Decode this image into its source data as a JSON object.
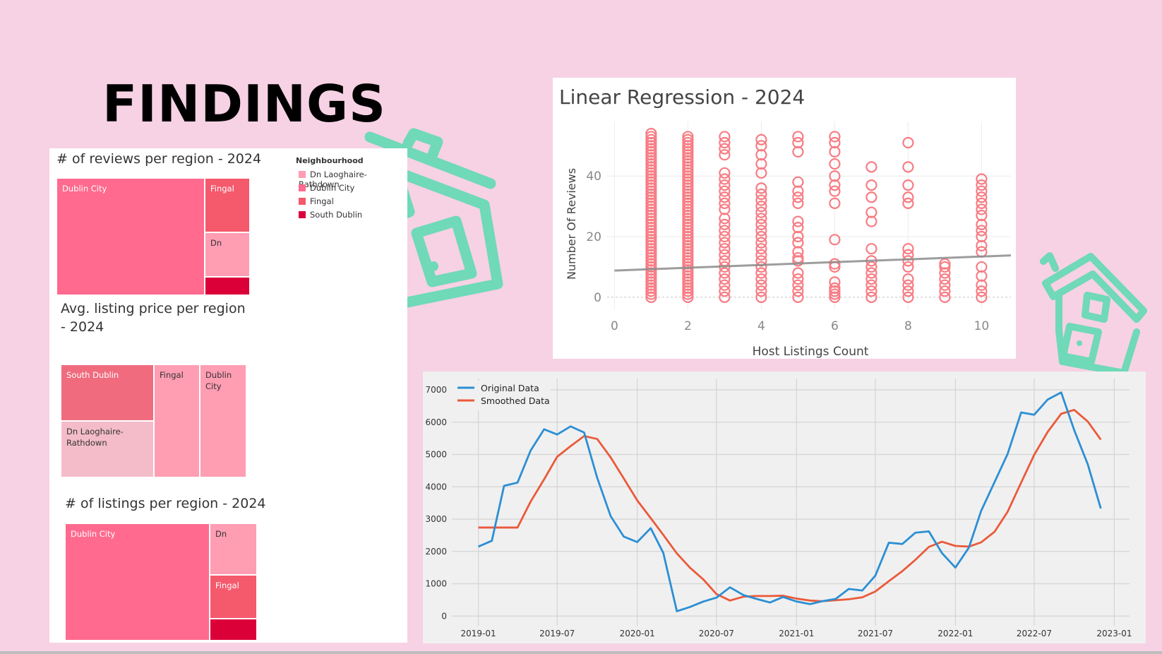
{
  "page": {
    "title": "FINDINGS",
    "colors": {
      "background": "#f7d1e4",
      "house_icon": "#6fd9b8"
    }
  },
  "treemap_reviews": {
    "title": "# of reviews per region - 2024",
    "cells": [
      {
        "label": "Dublin City",
        "color": "#ff6a8e",
        "text_color": "#ffffff"
      },
      {
        "label": "Fingal",
        "color": "#f5596c",
        "text_color": "#ffffff"
      },
      {
        "label": "Dn",
        "color": "#ff9db3",
        "text_color": "#333333"
      },
      {
        "label": "",
        "color": "#dc0039",
        "text_color": "#ffffff"
      }
    ]
  },
  "treemap_price": {
    "title": "Avg. listing price per region - 2024",
    "cells": [
      {
        "label": "South Dublin",
        "color": "#f06b7e",
        "text_color": "#ffffff"
      },
      {
        "label": "Fingal",
        "color": "#ff9db3",
        "text_color": "#333333"
      },
      {
        "label": "Dublin City",
        "color": "#ff9db3",
        "text_color": "#333333"
      },
      {
        "label": "Dn Laoghaire-Rathdown",
        "color": "#f4bcc9",
        "text_color": "#333333"
      }
    ]
  },
  "treemap_listings": {
    "title": "# of listings per region - 2024",
    "cells": [
      {
        "label": "Dublin City",
        "color": "#ff6a8e",
        "text_color": "#ffffff"
      },
      {
        "label": "Dn",
        "color": "#ff9db3",
        "text_color": "#333333"
      },
      {
        "label": "Fingal",
        "color": "#f5596c",
        "text_color": "#ffffff"
      },
      {
        "label": "",
        "color": "#dc0039",
        "text_color": "#ffffff"
      }
    ]
  },
  "neighbourhood_legend": {
    "title": "Neighbourhood",
    "items": [
      {
        "label": "Dn Laoghaire-Rathdown",
        "color": "#ff9db3"
      },
      {
        "label": "Dublin City",
        "color": "#ff6a8e"
      },
      {
        "label": "Fingal",
        "color": "#f5596c"
      },
      {
        "label": "South Dublin",
        "color": "#dc0039"
      }
    ]
  },
  "chart_data": [
    {
      "type": "scatter",
      "title": "Linear Regression - 2024",
      "xlabel": "Host Listings Count",
      "ylabel": "Number Of Reviews",
      "xlim": [
        -0.2,
        10.8
      ],
      "ylim": [
        -4,
        58
      ],
      "xticks": [
        0,
        2,
        4,
        6,
        8,
        10
      ],
      "yticks": [
        0,
        20,
        40
      ],
      "grid": true,
      "marker_color": "#f77c84",
      "trend_color": "#8c8c8c",
      "dense_columns": [
        {
          "x": 1,
          "y_min": 0,
          "y_max": 54
        },
        {
          "x": 2,
          "y_min": 0,
          "y_max": 53
        }
      ],
      "points": [
        {
          "x": 3,
          "y": [
            0,
            2,
            4,
            6,
            8,
            10,
            12,
            14,
            16,
            18,
            20,
            22,
            24,
            26,
            29,
            31,
            33,
            35,
            37,
            39,
            41,
            47,
            49,
            51,
            53
          ]
        },
        {
          "x": 4,
          "y": [
            0,
            2,
            4,
            6,
            8,
            10,
            12,
            14,
            16,
            18,
            20,
            22,
            24,
            26,
            28,
            30,
            32,
            34,
            36,
            41,
            44,
            47,
            50,
            52
          ]
        },
        {
          "x": 5,
          "y": [
            0,
            2,
            4,
            6,
            8,
            12,
            13,
            15,
            18,
            20,
            23,
            25,
            31,
            33,
            35,
            38,
            48,
            51,
            53
          ]
        },
        {
          "x": 6,
          "y": [
            0,
            1,
            2,
            3,
            5,
            10,
            11,
            19,
            31,
            35,
            37,
            40,
            44,
            48,
            51,
            53
          ]
        },
        {
          "x": 7,
          "y": [
            0,
            2,
            4,
            6,
            8,
            10,
            12,
            16,
            25,
            28,
            33,
            37,
            43
          ]
        },
        {
          "x": 8,
          "y": [
            0,
            2,
            4,
            6,
            10,
            12,
            14,
            16,
            31,
            33,
            37,
            43,
            51
          ]
        },
        {
          "x": 9,
          "y": [
            0,
            2,
            4,
            6,
            8,
            10,
            11
          ]
        },
        {
          "x": 10,
          "y": [
            0,
            2,
            4,
            7,
            10,
            15,
            17,
            20,
            22,
            24,
            27,
            29,
            31,
            33,
            35,
            37,
            39
          ]
        }
      ],
      "trendline": {
        "x": [
          0,
          10.8
        ],
        "y": [
          8.8,
          13.8
        ]
      }
    },
    {
      "type": "line",
      "x_type": "date",
      "xticks": [
        "2019-01",
        "2019-07",
        "2020-01",
        "2020-07",
        "2021-01",
        "2021-07",
        "2022-01",
        "2022-07",
        "2023-01"
      ],
      "yticks": [
        0,
        1000,
        2000,
        3000,
        4000,
        5000,
        6000,
        7000
      ],
      "xlim": [
        "2018-11-01",
        "2023-02-05"
      ],
      "ylim": [
        -300,
        7350
      ],
      "grid": true,
      "legend_position": "top-left",
      "x": [
        "2019-01",
        "2019-02",
        "2019-03",
        "2019-04",
        "2019-05",
        "2019-06",
        "2019-07",
        "2019-08",
        "2019-09",
        "2019-10",
        "2019-11",
        "2019-12",
        "2020-01",
        "2020-02",
        "2020-03",
        "2020-04",
        "2020-05",
        "2020-06",
        "2020-07",
        "2020-08",
        "2020-09",
        "2020-10",
        "2020-11",
        "2020-12",
        "2021-01",
        "2021-02",
        "2021-03",
        "2021-04",
        "2021-05",
        "2021-06",
        "2021-07",
        "2021-08",
        "2021-09",
        "2021-10",
        "2021-11",
        "2021-12",
        "2022-01",
        "2022-02",
        "2022-03",
        "2022-04",
        "2022-05",
        "2022-06",
        "2022-07",
        "2022-08",
        "2022-09",
        "2022-10",
        "2022-11",
        "2022-12"
      ],
      "series": [
        {
          "name": "Original Data",
          "color": "#2b8fd4",
          "values": [
            2150,
            2330,
            4030,
            4130,
            5120,
            5780,
            5620,
            5870,
            5680,
            4280,
            3090,
            2460,
            2290,
            2720,
            1950,
            150,
            280,
            450,
            570,
            890,
            650,
            530,
            420,
            590,
            450,
            370,
            460,
            530,
            840,
            790,
            1250,
            2270,
            2230,
            2580,
            2620,
            1950,
            1500,
            2120,
            3250,
            4150,
            5020,
            6300,
            6230,
            6700,
            6920,
            5750,
            4700,
            3330
          ]
        },
        {
          "name": "Smoothed Data",
          "color": "#ea5a3a",
          "values": [
            2740,
            2740,
            2740,
            2740,
            3540,
            4230,
            4930,
            5260,
            5570,
            5480,
            4910,
            4260,
            3580,
            3030,
            2510,
            1940,
            1500,
            1130,
            680,
            480,
            600,
            620,
            620,
            630,
            540,
            480,
            460,
            490,
            520,
            580,
            760,
            1080,
            1390,
            1740,
            2140,
            2300,
            2170,
            2150,
            2280,
            2610,
            3230,
            4130,
            4990,
            5700,
            6260,
            6380,
            6020,
            5460
          ]
        }
      ]
    }
  ]
}
